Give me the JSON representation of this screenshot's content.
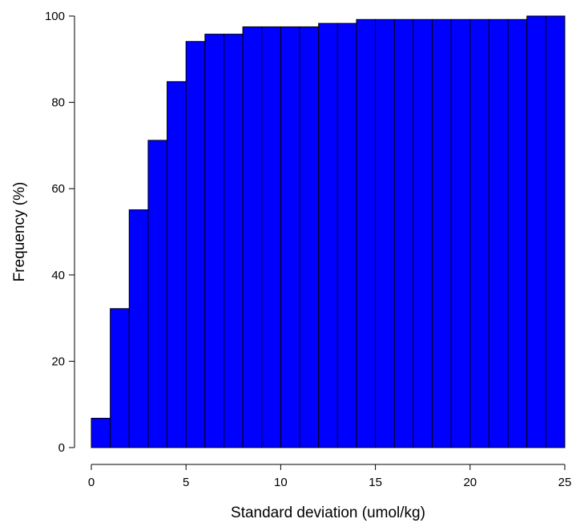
{
  "chart_data": {
    "type": "bar",
    "xlabel": "Standard deviation (umol/kg)",
    "ylabel": "Frequency (%)",
    "xlim": [
      0,
      25
    ],
    "ylim": [
      0,
      100
    ],
    "x_ticks": [
      "0",
      "5",
      "10",
      "15",
      "20",
      "25"
    ],
    "y_ticks": [
      "0",
      "20",
      "40",
      "60",
      "80",
      "100"
    ],
    "bin_width": 1,
    "bins": [
      {
        "x0": 0,
        "x1": 1,
        "value": 6.8
      },
      {
        "x0": 1,
        "x1": 2,
        "value": 32.2
      },
      {
        "x0": 2,
        "x1": 3,
        "value": 55.1
      },
      {
        "x0": 3,
        "x1": 4,
        "value": 71.2
      },
      {
        "x0": 4,
        "x1": 5,
        "value": 84.8
      },
      {
        "x0": 5,
        "x1": 6,
        "value": 94.1
      },
      {
        "x0": 6,
        "x1": 7,
        "value": 95.8
      },
      {
        "x0": 7,
        "x1": 8,
        "value": 95.8
      },
      {
        "x0": 8,
        "x1": 9,
        "value": 97.5
      },
      {
        "x0": 9,
        "x1": 10,
        "value": 97.5
      },
      {
        "x0": 10,
        "x1": 11,
        "value": 97.5
      },
      {
        "x0": 11,
        "x1": 12,
        "value": 97.5
      },
      {
        "x0": 12,
        "x1": 13,
        "value": 98.3
      },
      {
        "x0": 13,
        "x1": 14,
        "value": 98.3
      },
      {
        "x0": 14,
        "x1": 15,
        "value": 99.2
      },
      {
        "x0": 15,
        "x1": 16,
        "value": 99.2
      },
      {
        "x0": 16,
        "x1": 17,
        "value": 99.2
      },
      {
        "x0": 17,
        "x1": 18,
        "value": 99.2
      },
      {
        "x0": 18,
        "x1": 19,
        "value": 99.2
      },
      {
        "x0": 19,
        "x1": 20,
        "value": 99.2
      },
      {
        "x0": 20,
        "x1": 21,
        "value": 99.2
      },
      {
        "x0": 21,
        "x1": 22,
        "value": 99.2
      },
      {
        "x0": 22,
        "x1": 23,
        "value": 99.2
      },
      {
        "x0": 23,
        "x1": 24,
        "value": 100
      },
      {
        "x0": 24,
        "x1": 25,
        "value": 100
      }
    ],
    "bar_color": "#0000FF",
    "bar_edge_color": "#000000",
    "grid": false
  }
}
